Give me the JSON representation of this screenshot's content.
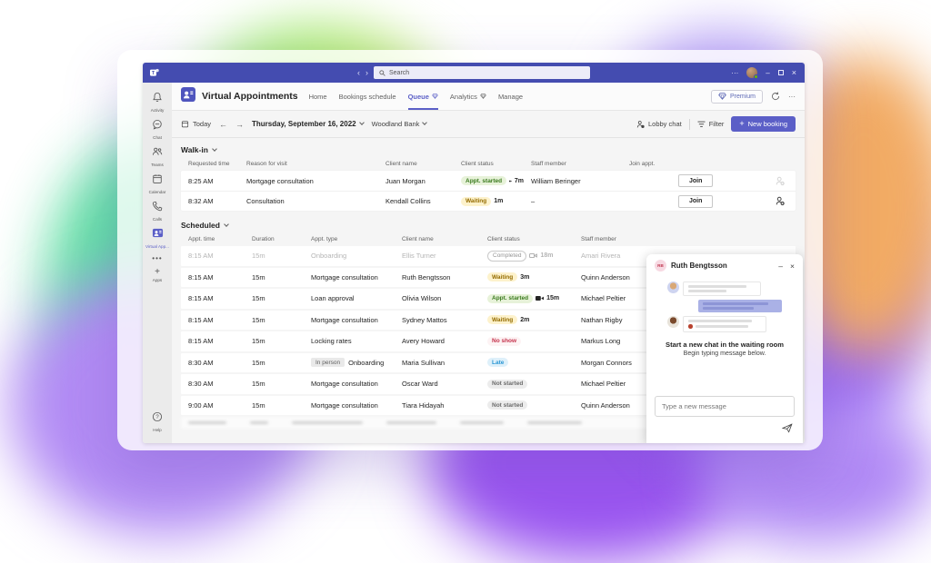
{
  "titlebar": {
    "search_placeholder": "Search"
  },
  "rail": {
    "items": [
      "Activity",
      "Chat",
      "Teams",
      "Calendar",
      "Calls",
      "Virtual App..."
    ],
    "apps_label": "Apps",
    "help_label": "Help"
  },
  "app_header": {
    "title": "Virtual Appointments",
    "tabs": [
      {
        "label": "Home"
      },
      {
        "label": "Bookings schedule"
      },
      {
        "label": "Queue",
        "premium": true,
        "active": true
      },
      {
        "label": "Analytics",
        "premium": true
      },
      {
        "label": "Manage"
      }
    ],
    "premium_label": "Premium"
  },
  "toolbar": {
    "today": "Today",
    "date": "Thursday, September 16, 2022",
    "org": "Woodland Bank",
    "lobby_chat": "Lobby chat",
    "filter": "Filter",
    "new_booking": "New booking"
  },
  "walk_in": {
    "title": "Walk-in",
    "columns": [
      "Requested time",
      "Reason for visit",
      "Client name",
      "Client status",
      "Staff member",
      "Join appt."
    ],
    "rows": [
      {
        "time": "8:25 AM",
        "reason": "Mortgage consultation",
        "client": "Juan Morgan",
        "status": {
          "label": "Appt. started",
          "type": "started",
          "camera": "on",
          "wait": "7m"
        },
        "staff": "William Beringer",
        "join": "Join",
        "assign_faint": true
      },
      {
        "time": "8:32 AM",
        "reason": "Consultation",
        "client": "Kendall Collins",
        "status": {
          "label": "Waiting",
          "type": "waiting",
          "wait": "1m"
        },
        "staff": "–",
        "join": "Join",
        "assign_faint": false
      }
    ]
  },
  "scheduled": {
    "title": "Scheduled",
    "columns": [
      "Appt. time",
      "Duration",
      "Appt. type",
      "Client name",
      "Client status",
      "Staff member"
    ],
    "rows": [
      {
        "time": "8:15 AM",
        "duration": "15m",
        "type": "Onboarding",
        "client": "Ellis Turner",
        "status": {
          "label": "Completed",
          "type": "completed",
          "camera": "off",
          "wait": "18m"
        },
        "staff": "Amari Rivera",
        "muted": true
      },
      {
        "time": "8:15 AM",
        "duration": "15m",
        "type": "Mortgage consultation",
        "client": "Ruth Bengtsson",
        "status": {
          "label": "Waiting",
          "type": "waiting",
          "wait": "3m"
        },
        "staff": "Quinn Anderson"
      },
      {
        "time": "8:15 AM",
        "duration": "15m",
        "type": "Loan approval",
        "client": "Olivia Wilson",
        "status": {
          "label": "Appt. started",
          "type": "started",
          "camera": "on",
          "wait": "15m"
        },
        "staff": "Michael Peltier"
      },
      {
        "time": "8:15 AM",
        "duration": "15m",
        "type": "Mortgage consultation",
        "client": "Sydney Mattos",
        "status": {
          "label": "Waiting",
          "type": "waiting",
          "wait": "2m"
        },
        "staff": "Nathan Rigby"
      },
      {
        "time": "8:15 AM",
        "duration": "15m",
        "type": "Locking rates",
        "client": "Avery Howard",
        "status": {
          "label": "No show",
          "type": "noshow"
        },
        "staff": "Markus Long"
      },
      {
        "time": "8:30 AM",
        "duration": "15m",
        "type_badge": "In person",
        "type": "Onboarding",
        "client": "Maria Sullivan",
        "status": {
          "label": "Late",
          "type": "late"
        },
        "staff": "Morgan Connors"
      },
      {
        "time": "8:30 AM",
        "duration": "15m",
        "type": "Mortgage consultation",
        "client": "Oscar Ward",
        "status": {
          "label": "Not started",
          "type": "notstarted"
        },
        "staff": "Michael Peltier"
      },
      {
        "time": "9:00 AM",
        "duration": "15m",
        "type": "Mortgage consultation",
        "client": "Tiara Hidayah",
        "status": {
          "label": "Not started",
          "type": "notstarted"
        },
        "staff": "Quinn Anderson"
      }
    ]
  },
  "chat": {
    "name": "Ruth Bengtsson",
    "avatar_initials": "RB",
    "headline": "Start a new chat in the waiting room",
    "subtext": "Begin typing message below.",
    "input_placeholder": "Type a new message"
  },
  "colors": {
    "accent": "#5b5fc7",
    "titlebar": "#444cb0",
    "badge_started_bg": "#e7f2d9",
    "badge_started_text": "#3a7a1e",
    "badge_waiting_bg": "#fdf2cc",
    "badge_waiting_text": "#946c00",
    "badge_noshow_text": "#c4314b",
    "badge_late_bg": "#def0fa",
    "badge_late_text": "#2a96d4",
    "badge_neutral_bg": "#ececec",
    "badge_neutral_text": "#6b6b6b"
  }
}
